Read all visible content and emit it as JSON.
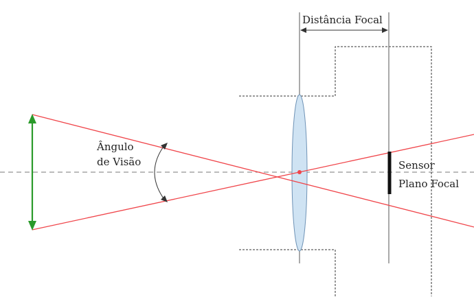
{
  "labels": {
    "focal_distance": "Distância Focal",
    "angle_line1": "Ângulo",
    "angle_line2": "de Visão",
    "sensor_line1": "Sensor",
    "sensor_line2": "Plano Focal"
  },
  "colors": {
    "rays": "#f0454a",
    "object_arrow": "#2a9a2a",
    "lens_fill": "#cfe3f3",
    "lens_stroke": "#6f93b6",
    "sensor": "#111111",
    "lines": "#444444"
  }
}
